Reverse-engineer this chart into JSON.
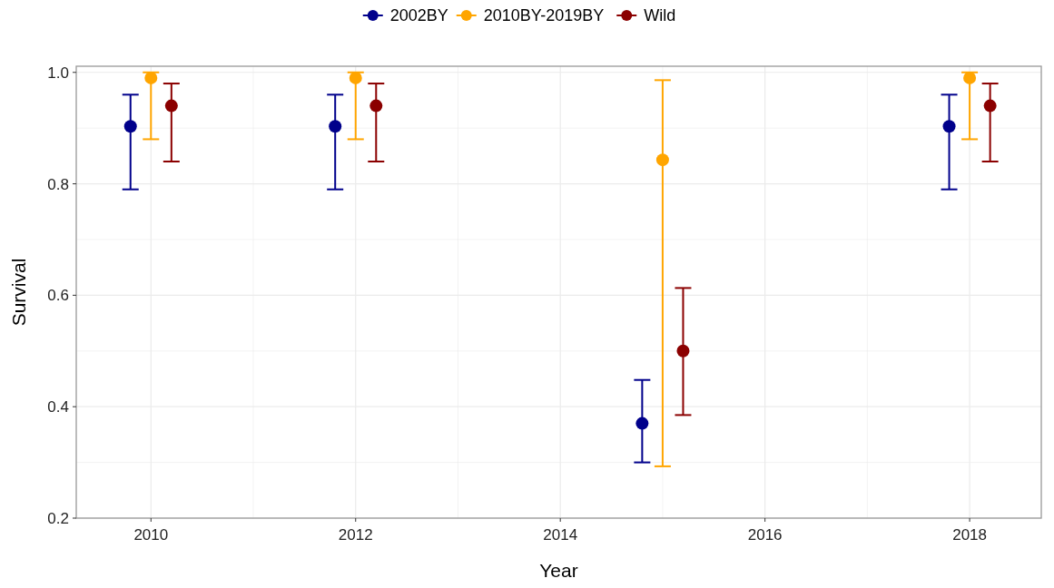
{
  "chart_data": {
    "type": "scatter",
    "xlabel": "Year",
    "ylabel": "Survival",
    "xlim": [
      2009.27,
      2018.7
    ],
    "ylim": [
      0.2,
      1.011
    ],
    "xticks": [
      2010,
      {
        "value": 2011,
        "label": null
      },
      2012,
      {
        "value": 2013,
        "label": null
      },
      2014,
      {
        "value": 2015,
        "label": null
      },
      2016,
      {
        "value": 2017,
        "label": null
      },
      2018
    ],
    "yticks": [
      {
        "value": 0.2,
        "label": "0.2"
      },
      {
        "value": 0.3,
        "label": null
      },
      {
        "value": 0.4,
        "label": "0.4"
      },
      {
        "value": 0.5,
        "label": null
      },
      {
        "value": 0.6,
        "label": "0.6"
      },
      {
        "value": 0.7,
        "label": null
      },
      {
        "value": 0.8,
        "label": "0.8"
      },
      {
        "value": 0.9,
        "label": null
      },
      {
        "value": 1.0,
        "label": "1.0"
      }
    ],
    "grid": true,
    "legend": "top",
    "marker": "circle",
    "series": [
      {
        "name": "2002BY",
        "color": "#00008b",
        "x": [
          2009.8,
          2011.8,
          2014.8,
          2017.8
        ],
        "values": [
          0.903,
          0.903,
          0.37,
          0.903
        ],
        "errors": [
          [
            0.79,
            0.96
          ],
          [
            0.79,
            0.96
          ],
          [
            0.3,
            0.448
          ],
          [
            0.79,
            0.96
          ]
        ]
      },
      {
        "name": "2010BY-2019BY",
        "color": "#ffa500",
        "x": [
          2010,
          2012,
          2015,
          2018
        ],
        "values": [
          0.99,
          0.99,
          0.843,
          0.99
        ],
        "errors": [
          [
            0.88,
            1.0
          ],
          [
            0.88,
            1.0
          ],
          [
            0.293,
            0.986
          ],
          [
            0.88,
            1.0
          ]
        ]
      },
      {
        "name": "Wild",
        "color": "#8b0000",
        "x": [
          2010.2,
          2012.2,
          2015.2,
          2018.2
        ],
        "values": [
          0.94,
          0.94,
          0.5,
          0.94
        ],
        "errors": [
          [
            0.84,
            0.98
          ],
          [
            0.84,
            0.98
          ],
          [
            0.385,
            0.613
          ],
          [
            0.84,
            0.98
          ]
        ]
      }
    ]
  }
}
